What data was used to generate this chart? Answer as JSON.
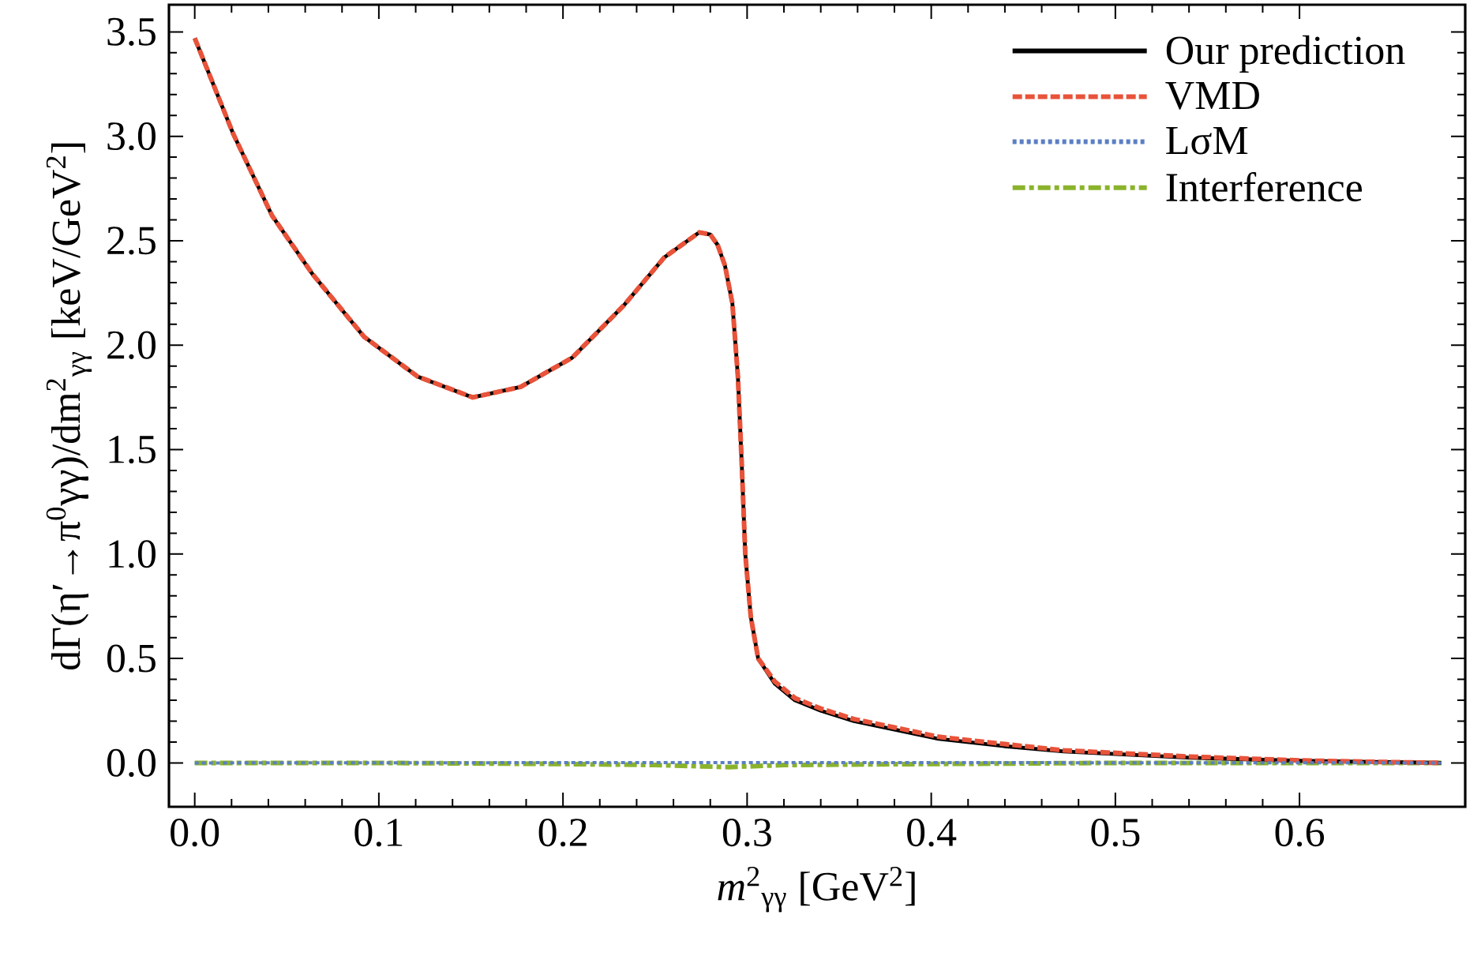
{
  "chart_data": {
    "type": "line",
    "xlabel": "*m*$^{2}$$_{γγ}$ [GeV$^{2}$]",
    "ylabel": "dΓ(η′→π$^{0}$γγ)/dm$^{2}$$_{γγ}$ [keV/GeV$^{2}$]",
    "x": [
      0,
      0.021,
      0.042,
      0.064,
      0.092,
      0.121,
      0.151,
      0.177,
      0.205,
      0.233,
      0.255,
      0.274,
      0.28,
      0.284,
      0.288,
      0.292,
      0.295,
      0.297,
      0.299,
      0.302,
      0.306,
      0.315,
      0.326,
      0.34,
      0.358,
      0.38,
      0.404,
      0.44,
      0.472,
      0.541,
      0.6,
      0.64,
      0.677
    ],
    "series": [
      {
        "name": "Our prediction",
        "color": "#000000",
        "line_style": "solid",
        "values": [
          3.47,
          3.01,
          2.62,
          2.34,
          2.04,
          1.85,
          1.75,
          1.8,
          1.94,
          2.19,
          2.42,
          2.54,
          2.53,
          2.48,
          2.38,
          2.2,
          1.85,
          1.45,
          1.0,
          0.7,
          0.5,
          0.38,
          0.3,
          0.25,
          0.2,
          0.16,
          0.115,
          0.08,
          0.055,
          0.025,
          0.01,
          0.005,
          0
        ]
      },
      {
        "name": "VMD",
        "color": "#e8533a",
        "line_style": "dashed",
        "values": [
          3.47,
          3.01,
          2.62,
          2.34,
          2.04,
          1.85,
          1.75,
          1.8,
          1.94,
          2.19,
          2.42,
          2.54,
          2.53,
          2.48,
          2.38,
          2.2,
          1.85,
          1.45,
          1.0,
          0.7,
          0.5,
          0.39,
          0.31,
          0.26,
          0.21,
          0.17,
          0.125,
          0.09,
          0.06,
          0.03,
          0.012,
          0.005,
          0
        ]
      },
      {
        "name": "LσM",
        "color": "#5b7fc4",
        "line_style": "dotted",
        "x": [
          0,
          0.3,
          0.677
        ],
        "values": [
          0,
          0.002,
          0
        ]
      },
      {
        "name": "Interference",
        "color": "#8ab32b",
        "line_style": "dashdot",
        "x": [
          0,
          0.1,
          0.2,
          0.25,
          0.29,
          0.32,
          0.4,
          0.5,
          0.6,
          0.677
        ],
        "values": [
          0,
          0,
          -0.005,
          -0.01,
          -0.02,
          -0.01,
          -0.005,
          0,
          0,
          0
        ]
      }
    ],
    "xlim": [
      -0.014,
      0.69
    ],
    "ylim": [
      -0.21,
      3.63
    ],
    "xticks": [
      {
        "value": 0,
        "label": "0.0"
      },
      {
        "value": 0.1,
        "label": "0.1"
      },
      {
        "value": 0.2,
        "label": "0.2"
      },
      {
        "value": 0.3,
        "label": "0.3"
      },
      {
        "value": 0.4,
        "label": "0.4"
      },
      {
        "value": 0.5,
        "label": "0.5"
      },
      {
        "value": 0.6,
        "label": "0.6"
      }
    ],
    "yticks": [
      {
        "value": 0,
        "label": "0.0"
      },
      {
        "value": 0.5,
        "label": "0.5"
      },
      {
        "value": 1,
        "label": "1.0"
      },
      {
        "value": 1.5,
        "label": "1.5"
      },
      {
        "value": 2,
        "label": "2.0"
      },
      {
        "value": 2.5,
        "label": "2.5"
      },
      {
        "value": 3,
        "label": "3.0"
      },
      {
        "value": 3.5,
        "label": "3.5"
      }
    ],
    "grid": false,
    "legend": "top right"
  }
}
